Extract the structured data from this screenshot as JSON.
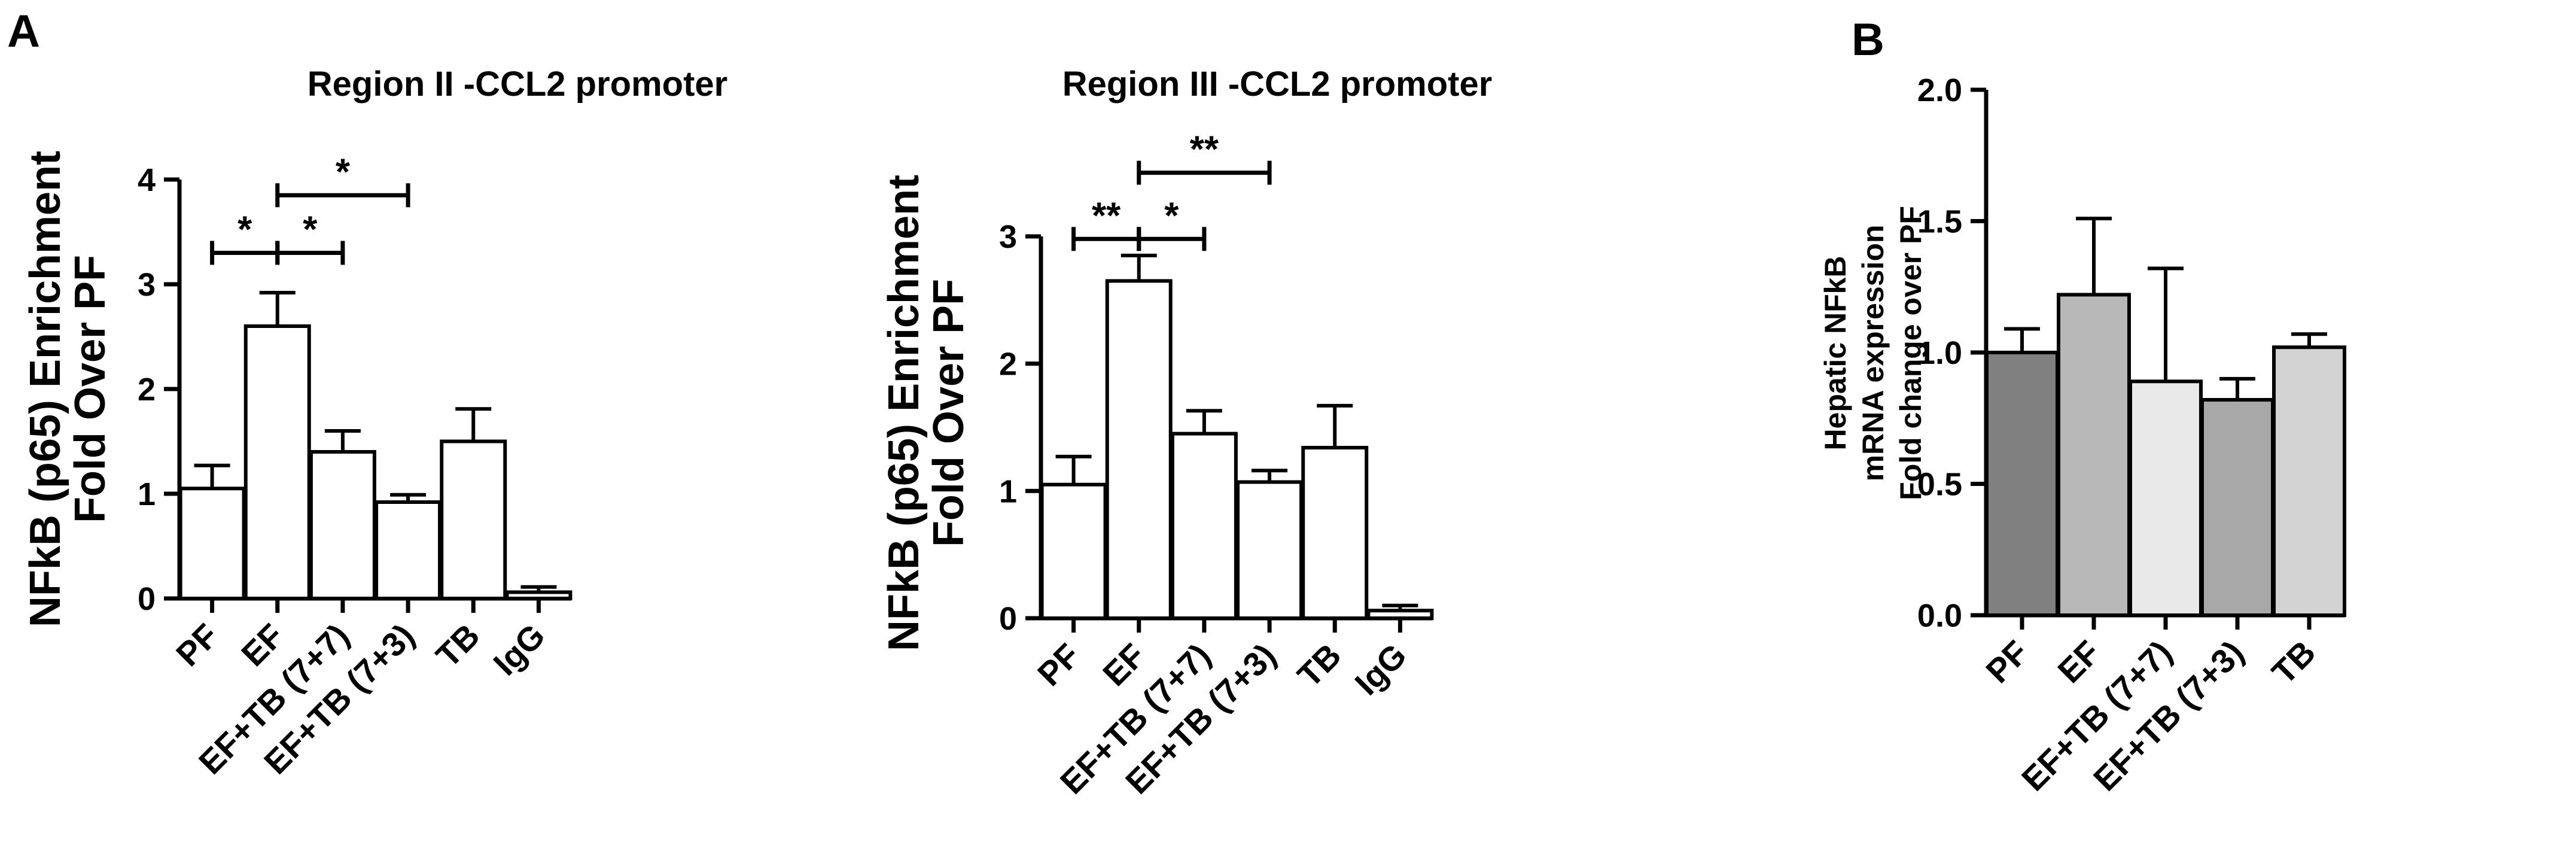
{
  "chart_data": [
    {
      "panel": "A",
      "type": "bar",
      "title": "Region II -CCL2 promoter",
      "ylabel_lines": [
        "NFkB (p65) Enrichment",
        "Fold Over PF"
      ],
      "ylim": [
        0,
        4
      ],
      "yticks": [
        "0",
        "1",
        "2",
        "3",
        "4"
      ],
      "categories": [
        "PF",
        "EF",
        "EF+TB (7+7)",
        "EF+TB (7+3)",
        "TB",
        "IgG"
      ],
      "values": [
        1.05,
        2.6,
        1.4,
        0.92,
        1.5,
        0.06
      ],
      "errors": [
        0.22,
        0.32,
        0.2,
        0.07,
        0.31,
        0.05
      ],
      "bar_colors": [
        "#ffffff",
        "#ffffff",
        "#ffffff",
        "#ffffff",
        "#ffffff",
        "#ffffff"
      ],
      "significance": [
        {
          "from": "PF",
          "to": "EF",
          "label": "*",
          "y": 3.3
        },
        {
          "from": "EF",
          "to": "EF+TB (7+7)",
          "label": "*",
          "y": 3.3
        },
        {
          "from": "EF",
          "to": "EF+TB (7+3)",
          "label": "*",
          "y": 3.85
        }
      ]
    },
    {
      "type": "bar",
      "title": "Region III -CCL2 promoter",
      "ylabel_lines": [
        "NFkB (p65) Enrichment",
        "Fold Over PF"
      ],
      "ylim": [
        0,
        3
      ],
      "yticks": [
        "0",
        "1",
        "2",
        "3"
      ],
      "categories": [
        "PF",
        "EF",
        "EF+TB (7+7)",
        "EF+TB (7+3)",
        "TB",
        "IgG"
      ],
      "values": [
        1.05,
        2.65,
        1.45,
        1.07,
        1.34,
        0.06
      ],
      "errors": [
        0.22,
        0.2,
        0.18,
        0.09,
        0.33,
        0.04
      ],
      "bar_colors": [
        "#ffffff",
        "#ffffff",
        "#ffffff",
        "#ffffff",
        "#ffffff",
        "#ffffff"
      ],
      "significance": [
        {
          "from": "PF",
          "to": "EF",
          "label": "**",
          "y": 2.98
        },
        {
          "from": "EF",
          "to": "EF+TB (7+7)",
          "label": "*",
          "y": 2.98
        },
        {
          "from": "EF",
          "to": "EF+TB (7+3)",
          "label": "**",
          "y": 3.5
        }
      ]
    },
    {
      "panel": "B",
      "type": "bar",
      "title": "",
      "ylabel_lines": [
        "Hepatic NFkB",
        "mRNA expression",
        "Fold change over PF"
      ],
      "ylim": [
        0,
        2.0
      ],
      "yticks": [
        "0.0",
        "0.5",
        "1.0",
        "1.5",
        "2.0"
      ],
      "categories": [
        "PF",
        "EF",
        "EF+TB (7+7)",
        "EF+TB (7+3)",
        "TB"
      ],
      "values": [
        1.0,
        1.22,
        0.89,
        0.82,
        1.02
      ],
      "errors": [
        0.09,
        0.29,
        0.43,
        0.08,
        0.05
      ],
      "bar_colors": [
        "#808080",
        "#b8b8b8",
        "#e9e9e9",
        "#a8a8a8",
        "#d3d3d3"
      ],
      "significance": []
    }
  ]
}
